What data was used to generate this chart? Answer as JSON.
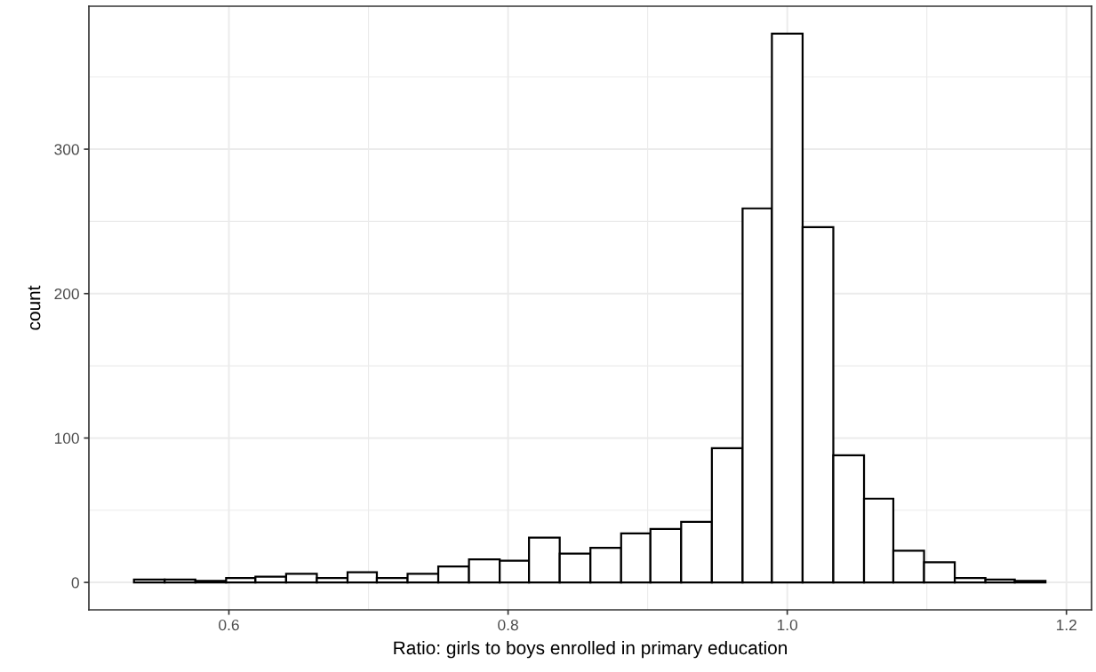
{
  "chart_data": {
    "type": "histogram",
    "xlabel": "Ratio: girls to boys enrolled in primary education",
    "ylabel": "count",
    "bins": [
      0.532,
      0.554,
      0.576,
      0.598,
      0.619,
      0.641,
      0.663,
      0.685,
      0.706,
      0.728,
      0.75,
      0.772,
      0.794,
      0.815,
      0.837,
      0.859,
      0.881,
      0.902,
      0.924,
      0.946,
      0.968,
      0.989,
      1.011,
      1.033,
      1.055,
      1.076,
      1.098,
      1.12,
      1.142,
      1.163,
      1.185
    ],
    "values": [
      2,
      2,
      1,
      3,
      4,
      6,
      3,
      7,
      3,
      6,
      11,
      16,
      15,
      31,
      20,
      24,
      34,
      37,
      42,
      93,
      259,
      380,
      246,
      88,
      58,
      22,
      14,
      3,
      2,
      1
    ],
    "color": "#ffffff",
    "xlim": [
      0.4997,
      1.218
    ],
    "xticks": [
      {
        "value": 0.6,
        "label": "0.6"
      },
      {
        "value": 0.8,
        "label": "0.8"
      },
      {
        "value": 1.0,
        "label": "1.0"
      },
      {
        "value": 1.2,
        "label": "1.2"
      }
    ],
    "ylim": [
      -19,
      399
    ],
    "yticks": [
      0,
      100,
      200,
      300
    ],
    "grid": true
  }
}
